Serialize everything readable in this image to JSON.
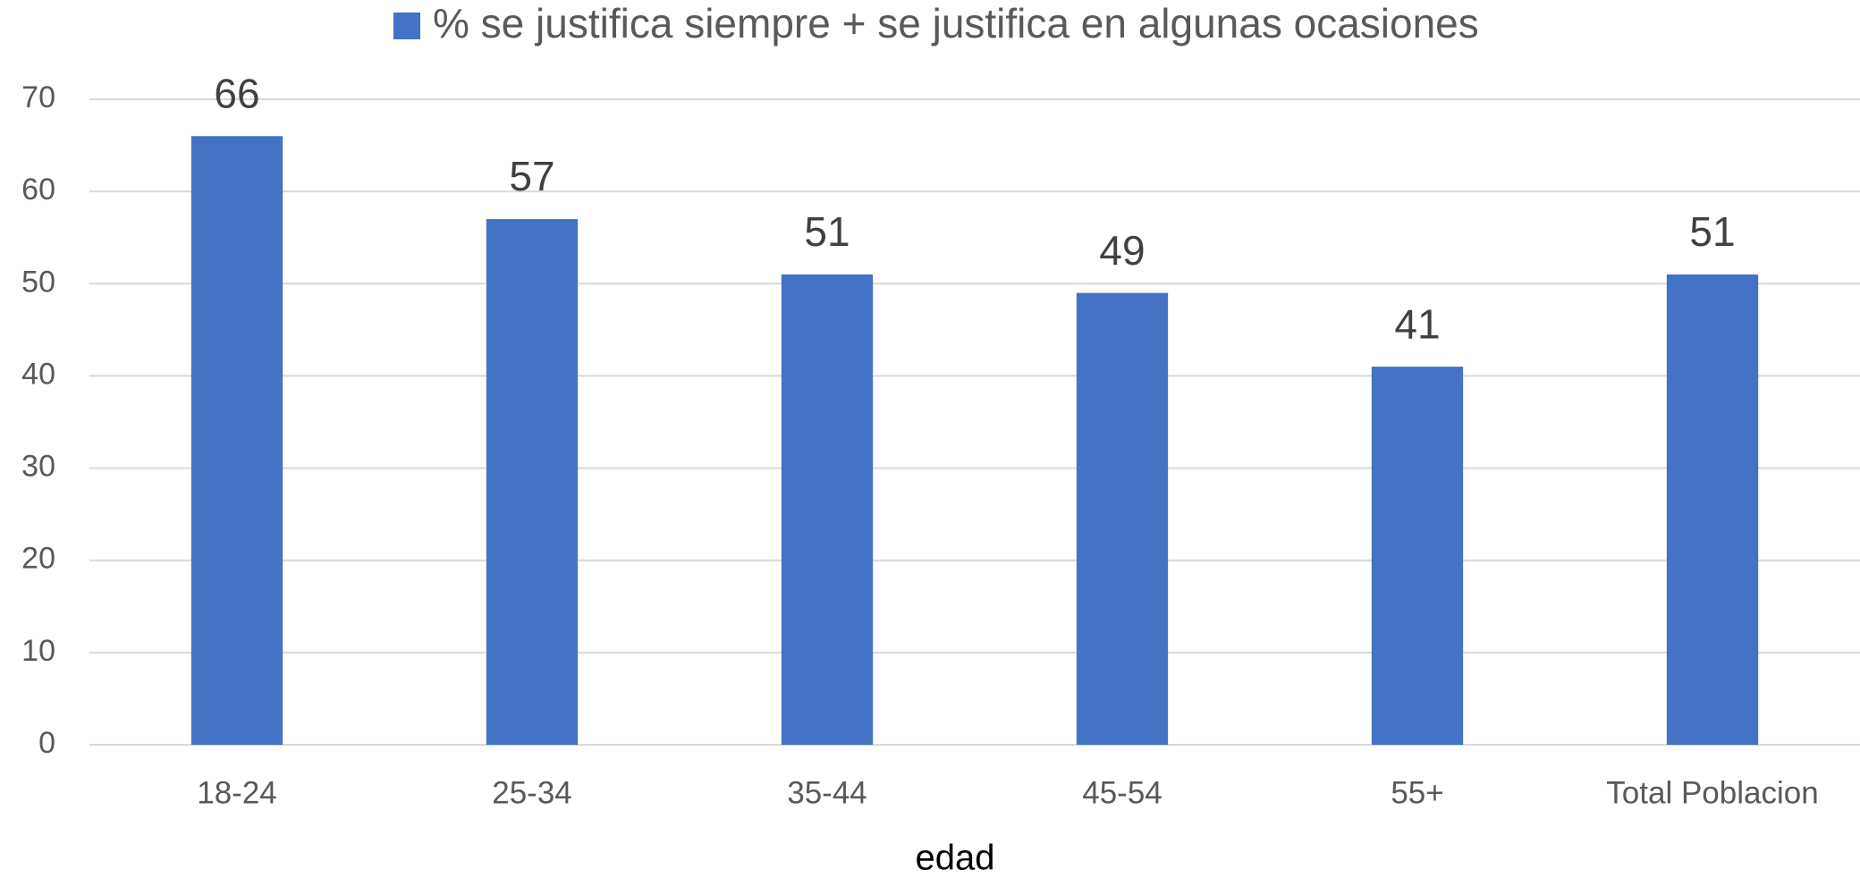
{
  "chart_data": {
    "type": "bar",
    "series": [
      {
        "name": "% se justifica siempre + se justifica en algunas ocasiones",
        "color": "#4472c4",
        "values": [
          66,
          57,
          51,
          49,
          41,
          51
        ]
      }
    ],
    "categories": [
      "18-24",
      "25-34",
      "35-44",
      "45-54",
      "55+",
      "Total Poblacion"
    ],
    "x_label": "edad",
    "ylim": [
      0,
      70
    ],
    "yticks": [
      0,
      10,
      20,
      30,
      40,
      50,
      60,
      70
    ],
    "grid": true,
    "legend": "top"
  }
}
